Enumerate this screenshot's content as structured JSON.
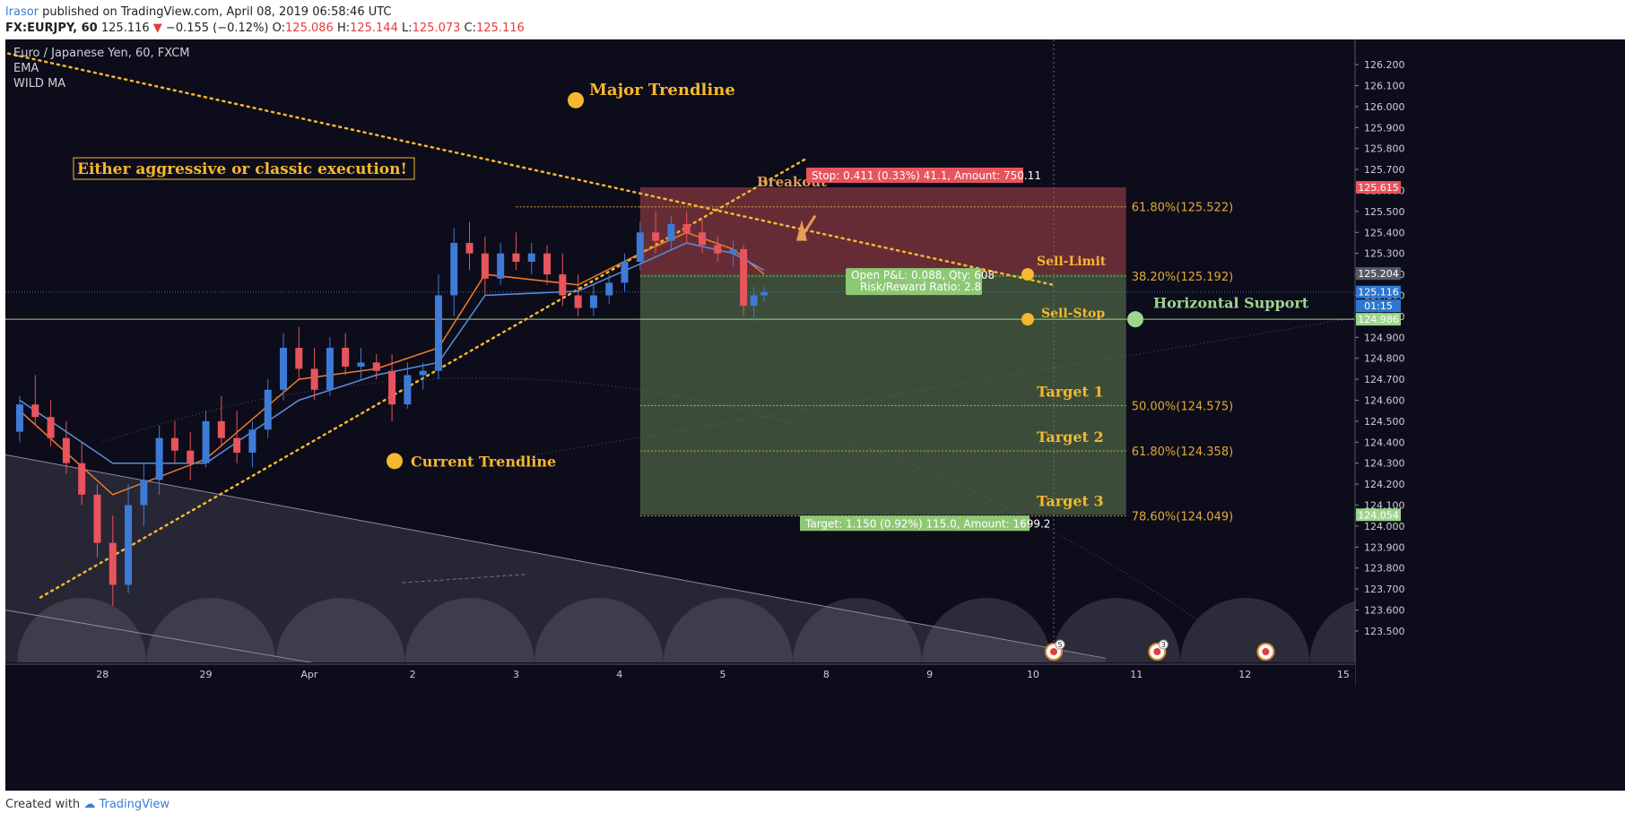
{
  "header": {
    "author": "lrasor",
    "published_text": "published on TradingView.com, April 08, 2019 06:58:46 UTC",
    "symbol": "FX:EURJPY, 60",
    "last": "125.116",
    "change_arrow": "▼",
    "change": "−0.155 (−0.12%)",
    "o_label": "O:",
    "o_value": "125.086",
    "h_label": "H:",
    "h_value": "125.144",
    "l_label": "L:",
    "l_value": "125.073",
    "c_label": "C:",
    "c_value": "125.116"
  },
  "legend": {
    "title": "Euro / Japanese Yen, 60, FXCM",
    "indicators": [
      "EMA",
      "WILD MA"
    ]
  },
  "footer": {
    "created_with": "Created with",
    "brand": "TradingView"
  },
  "colors": {
    "background": "#0d0c1a",
    "bull": "#3d7bd6",
    "bear": "#e8545c",
    "ema": "#f07b2a",
    "wild_ma": "#5b8fdc",
    "trendline": "#f5b82e",
    "annotation": "#f5b82e",
    "support": "#9ed58d",
    "stop_zone": "#b0474f",
    "target_zone": "#5a7a4c"
  },
  "chart_data": {
    "type": "candlestick",
    "title": "Euro / Japanese Yen, 60, FXCM",
    "ylim": [
      123.35,
      126.32
    ],
    "y_ticks": [
      "126.200",
      "126.100",
      "126.000",
      "125.900",
      "125.800",
      "125.700",
      "125.600",
      "125.500",
      "125.400",
      "125.300",
      "125.200",
      "125.100",
      "125.000",
      "124.900",
      "124.800",
      "124.700",
      "124.600",
      "124.500",
      "124.400",
      "124.300",
      "124.200",
      "124.100",
      "124.000",
      "123.900",
      "123.800",
      "123.700",
      "123.600",
      "123.500"
    ],
    "x_ticks": [
      "28",
      "29",
      "Apr",
      "2",
      "3",
      "4",
      "5",
      "8",
      "9",
      "10",
      "11",
      "12",
      "15"
    ],
    "price_tags": [
      {
        "label": "125.615",
        "value": 125.615,
        "color": "#e8545c"
      },
      {
        "label": "125.204",
        "value": 125.204,
        "color": "#555a66"
      },
      {
        "label": "125.116",
        "value": 125.116,
        "color": "#2f78d2"
      },
      {
        "label": "01:15",
        "value": 125.05,
        "color": "#2f78d2"
      },
      {
        "label": "124.986",
        "value": 124.986,
        "color": "#9ed58d"
      },
      {
        "label": "124.054",
        "value": 124.054,
        "color": "#9ed58d"
      }
    ],
    "candles": [
      {
        "t": 0.0,
        "o": 124.45,
        "h": 124.62,
        "l": 124.4,
        "c": 124.58
      },
      {
        "t": 0.15,
        "o": 124.58,
        "h": 124.72,
        "l": 124.48,
        "c": 124.52
      },
      {
        "t": 0.3,
        "o": 124.52,
        "h": 124.6,
        "l": 124.38,
        "c": 124.42
      },
      {
        "t": 0.45,
        "o": 124.42,
        "h": 124.5,
        "l": 124.25,
        "c": 124.3
      },
      {
        "t": 0.6,
        "o": 124.3,
        "h": 124.4,
        "l": 124.1,
        "c": 124.15
      },
      {
        "t": 0.75,
        "o": 124.15,
        "h": 124.2,
        "l": 123.85,
        "c": 123.92
      },
      {
        "t": 0.9,
        "o": 123.92,
        "h": 124.05,
        "l": 123.62,
        "c": 123.72
      },
      {
        "t": 1.05,
        "o": 123.72,
        "h": 124.2,
        "l": 123.68,
        "c": 124.1
      },
      {
        "t": 1.2,
        "o": 124.1,
        "h": 124.3,
        "l": 124.0,
        "c": 124.22
      },
      {
        "t": 1.35,
        "o": 124.22,
        "h": 124.48,
        "l": 124.15,
        "c": 124.42
      },
      {
        "t": 1.5,
        "o": 124.42,
        "h": 124.5,
        "l": 124.3,
        "c": 124.36
      },
      {
        "t": 1.65,
        "o": 124.36,
        "h": 124.45,
        "l": 124.22,
        "c": 124.3
      },
      {
        "t": 1.8,
        "o": 124.3,
        "h": 124.55,
        "l": 124.28,
        "c": 124.5
      },
      {
        "t": 1.95,
        "o": 124.5,
        "h": 124.62,
        "l": 124.38,
        "c": 124.42
      },
      {
        "t": 2.1,
        "o": 124.42,
        "h": 124.55,
        "l": 124.3,
        "c": 124.35
      },
      {
        "t": 2.25,
        "o": 124.35,
        "h": 124.5,
        "l": 124.28,
        "c": 124.46
      },
      {
        "t": 2.4,
        "o": 124.46,
        "h": 124.7,
        "l": 124.42,
        "c": 124.65
      },
      {
        "t": 2.55,
        "o": 124.65,
        "h": 124.92,
        "l": 124.6,
        "c": 124.85
      },
      {
        "t": 2.7,
        "o": 124.85,
        "h": 124.95,
        "l": 124.7,
        "c": 124.75
      },
      {
        "t": 2.85,
        "o": 124.75,
        "h": 124.85,
        "l": 124.6,
        "c": 124.65
      },
      {
        "t": 3.0,
        "o": 124.65,
        "h": 124.9,
        "l": 124.62,
        "c": 124.85
      },
      {
        "t": 3.15,
        "o": 124.85,
        "h": 124.92,
        "l": 124.72,
        "c": 124.76
      },
      {
        "t": 3.3,
        "o": 124.76,
        "h": 124.85,
        "l": 124.7,
        "c": 124.78
      },
      {
        "t": 3.45,
        "o": 124.78,
        "h": 124.82,
        "l": 124.7,
        "c": 124.74
      },
      {
        "t": 3.6,
        "o": 124.74,
        "h": 124.82,
        "l": 124.5,
        "c": 124.58
      },
      {
        "t": 3.75,
        "o": 124.58,
        "h": 124.78,
        "l": 124.56,
        "c": 124.72
      },
      {
        "t": 3.9,
        "o": 124.72,
        "h": 124.78,
        "l": 124.65,
        "c": 124.74
      },
      {
        "t": 4.05,
        "o": 124.74,
        "h": 125.2,
        "l": 124.7,
        "c": 125.1
      },
      {
        "t": 4.2,
        "o": 125.1,
        "h": 125.42,
        "l": 125.0,
        "c": 125.35
      },
      {
        "t": 4.35,
        "o": 125.35,
        "h": 125.45,
        "l": 125.22,
        "c": 125.3
      },
      {
        "t": 4.5,
        "o": 125.3,
        "h": 125.38,
        "l": 125.1,
        "c": 125.18
      },
      {
        "t": 4.65,
        "o": 125.18,
        "h": 125.35,
        "l": 125.15,
        "c": 125.3
      },
      {
        "t": 4.8,
        "o": 125.3,
        "h": 125.4,
        "l": 125.22,
        "c": 125.26
      },
      {
        "t": 4.95,
        "o": 125.26,
        "h": 125.35,
        "l": 125.2,
        "c": 125.3
      },
      {
        "t": 5.1,
        "o": 125.3,
        "h": 125.34,
        "l": 125.15,
        "c": 125.2
      },
      {
        "t": 5.25,
        "o": 125.2,
        "h": 125.3,
        "l": 125.05,
        "c": 125.1
      },
      {
        "t": 5.4,
        "o": 125.1,
        "h": 125.2,
        "l": 125.0,
        "c": 125.04
      },
      {
        "t": 5.55,
        "o": 125.04,
        "h": 125.15,
        "l": 125.0,
        "c": 125.1
      },
      {
        "t": 5.7,
        "o": 125.1,
        "h": 125.2,
        "l": 125.06,
        "c": 125.16
      },
      {
        "t": 5.85,
        "o": 125.16,
        "h": 125.3,
        "l": 125.12,
        "c": 125.26
      },
      {
        "t": 6.0,
        "o": 125.26,
        "h": 125.45,
        "l": 125.22,
        "c": 125.4
      },
      {
        "t": 6.15,
        "o": 125.4,
        "h": 125.5,
        "l": 125.3,
        "c": 125.36
      },
      {
        "t": 6.3,
        "o": 125.36,
        "h": 125.48,
        "l": 125.32,
        "c": 125.44
      },
      {
        "t": 6.45,
        "o": 125.44,
        "h": 125.5,
        "l": 125.35,
        "c": 125.4
      },
      {
        "t": 6.6,
        "o": 125.4,
        "h": 125.46,
        "l": 125.3,
        "c": 125.34
      },
      {
        "t": 6.75,
        "o": 125.34,
        "h": 125.38,
        "l": 125.26,
        "c": 125.3
      },
      {
        "t": 6.9,
        "o": 125.3,
        "h": 125.36,
        "l": 125.24,
        "c": 125.32
      },
      {
        "t": 7.0,
        "o": 125.32,
        "h": 125.34,
        "l": 125.0,
        "c": 125.05
      },
      {
        "t": 7.1,
        "o": 125.05,
        "h": 125.14,
        "l": 124.98,
        "c": 125.1
      },
      {
        "t": 7.2,
        "o": 125.1,
        "h": 125.14,
        "l": 125.07,
        "c": 125.116
      }
    ],
    "series": [
      {
        "name": "EMA",
        "values": [
          {
            "t": 0,
            "v": 124.55
          },
          {
            "t": 0.9,
            "v": 124.15
          },
          {
            "t": 1.8,
            "v": 124.32
          },
          {
            "t": 2.7,
            "v": 124.7
          },
          {
            "t": 3.45,
            "v": 124.75
          },
          {
            "t": 4.05,
            "v": 124.85
          },
          {
            "t": 4.5,
            "v": 125.2
          },
          {
            "t": 5.4,
            "v": 125.15
          },
          {
            "t": 6.0,
            "v": 125.3
          },
          {
            "t": 6.45,
            "v": 125.4
          },
          {
            "t": 6.9,
            "v": 125.32
          },
          {
            "t": 7.2,
            "v": 125.2
          }
        ]
      },
      {
        "name": "WILD MA",
        "values": [
          {
            "t": 0,
            "v": 124.6
          },
          {
            "t": 0.9,
            "v": 124.3
          },
          {
            "t": 1.8,
            "v": 124.3
          },
          {
            "t": 2.7,
            "v": 124.6
          },
          {
            "t": 3.45,
            "v": 124.72
          },
          {
            "t": 4.05,
            "v": 124.78
          },
          {
            "t": 4.5,
            "v": 125.1
          },
          {
            "t": 5.4,
            "v": 125.12
          },
          {
            "t": 6.0,
            "v": 125.25
          },
          {
            "t": 6.45,
            "v": 125.35
          },
          {
            "t": 6.9,
            "v": 125.3
          },
          {
            "t": 7.2,
            "v": 125.22
          }
        ]
      }
    ],
    "drawings": {
      "major_trendline": [
        [
          -1.0,
          126.35
        ],
        [
          10.0,
          125.48
        ]
      ],
      "current_trendline": [
        [
          0.2,
          123.66
        ],
        [
          7.6,
          125.75
        ]
      ],
      "horizontal_support": 124.986,
      "position_box": {
        "x0": 6.0,
        "x1": 10.7,
        "entry": 125.204,
        "stop": 125.615,
        "target": 124.054
      },
      "fib_levels": [
        {
          "label": "61.80%(125.522)",
          "value": 125.522
        },
        {
          "label": "38.20%(125.192)",
          "value": 125.192
        },
        {
          "label": "50.00%(124.575)",
          "value": 124.575
        },
        {
          "label": "61.80%(124.358)",
          "value": 124.358
        },
        {
          "label": "78.60%(124.049)",
          "value": 124.049
        }
      ]
    },
    "annotations": {
      "major_trendline": "Major Trendline",
      "current_trendline": "Current Trendline",
      "execution_note": "Either aggressive or classic execution!",
      "breakout": "Breakout",
      "sell_limit": "Sell-Limit",
      "sell_stop": "Sell-Stop",
      "horizontal_support": "Horizontal Support",
      "target1": "Target 1",
      "target2": "Target 2",
      "target3": "Target 3",
      "stop_label": "Stop: 0.411 (0.33%) 41.1, Amount: 750.11",
      "pnl_line1": "Open P&L: 0.088, Qty: 608",
      "pnl_line2": "Risk/Reward Ratio: 2.8",
      "target_label": "Target: 1.150 (0.92%) 115.0, Amount: 1699.2"
    },
    "events": [
      {
        "x": 10.0,
        "count": "5"
      },
      {
        "x": 11.0,
        "count": "3"
      },
      {
        "x": 12.05,
        "count": ""
      }
    ]
  }
}
